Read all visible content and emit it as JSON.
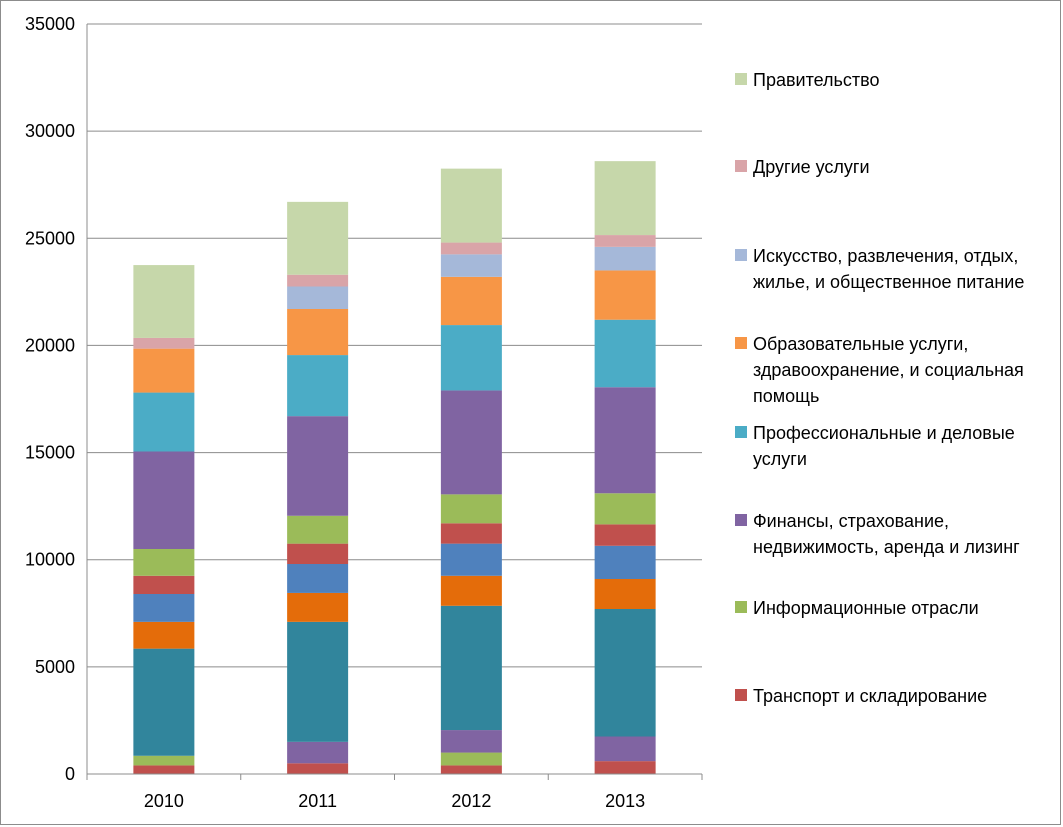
{
  "chart_data": {
    "type": "bar",
    "stacked": true,
    "categories": [
      "2010",
      "2011",
      "2012",
      "2013"
    ],
    "ylim": [
      0,
      35000
    ],
    "yticks": [
      0,
      5000,
      10000,
      15000,
      20000,
      25000,
      30000,
      35000
    ],
    "grid": true,
    "legend_position": "right",
    "series": [
      {
        "values": [
          400,
          500,
          400,
          600
        ],
        "color": "#C0504D"
      },
      {
        "values": [
          450,
          0,
          600,
          0
        ],
        "color": "#9BBB59"
      },
      {
        "values": [
          0,
          1000,
          1050,
          1150
        ],
        "color": "#8064A2"
      },
      {
        "values": [
          5000,
          5600,
          5800,
          5950
        ],
        "color": "#31859C"
      },
      {
        "values": [
          1250,
          1350,
          1400,
          1400
        ],
        "color": "#E46C0A"
      },
      {
        "values": [
          1300,
          1350,
          1500,
          1550
        ],
        "color": "#4F81BD"
      },
      {
        "values": [
          850,
          950,
          950,
          1000
        ],
        "color": "#C0504D"
      },
      {
        "values": [
          1250,
          1300,
          1350,
          1450
        ],
        "color": "#9BBB59"
      },
      {
        "name": "Финансы, страхование, недвижимость, аренда и лизинг",
        "values": [
          4550,
          4650,
          4850,
          4950
        ],
        "color": "#8064A2"
      },
      {
        "name": "Профессиональные и деловые услуги",
        "values": [
          2750,
          2850,
          3050,
          3150
        ],
        "color": "#4BACC6"
      },
      {
        "name": "Образовательные услуги, здравоохранение, и социальная помощь",
        "values": [
          2050,
          2150,
          2250,
          2300
        ],
        "color": "#F79646"
      },
      {
        "name": "Искусство, развлечения, отдых, жилье, и общественное питание",
        "values": [
          0,
          1050,
          1050,
          1100
        ],
        "color": "#A5B8D9"
      },
      {
        "name": "Другие услуги",
        "values": [
          500,
          550,
          550,
          550
        ],
        "color": "#D9A4A8"
      },
      {
        "name": "Правительство",
        "values": [
          3400,
          3400,
          3450,
          3450
        ],
        "color": "#C6D7AA"
      }
    ],
    "legend": [
      {
        "lines": [
          "Правительство"
        ],
        "color": "#C6D7AA"
      },
      {
        "lines": [
          "Другие услуги"
        ],
        "color": "#D9A4A8"
      },
      {
        "lines": [
          "Искусство, развлечения, отдых,",
          "жилье, и общественное питание"
        ],
        "color": "#A5B8D9"
      },
      {
        "lines": [
          "Образовательные услуги,",
          "здравоохранение, и социальная",
          "помощь"
        ],
        "color": "#F79646"
      },
      {
        "lines": [
          "Профессиональные и деловые",
          "услуги"
        ],
        "color": "#4BACC6"
      },
      {
        "lines": [
          "Финансы, страхование,",
          "недвижимость, аренда и лизинг"
        ],
        "color": "#8064A2"
      },
      {
        "lines": [
          "Информационные отрасли"
        ],
        "color": "#9BBB59"
      },
      {
        "lines": [
          "Транспорт и складирование"
        ],
        "color": "#C0504D"
      }
    ]
  }
}
